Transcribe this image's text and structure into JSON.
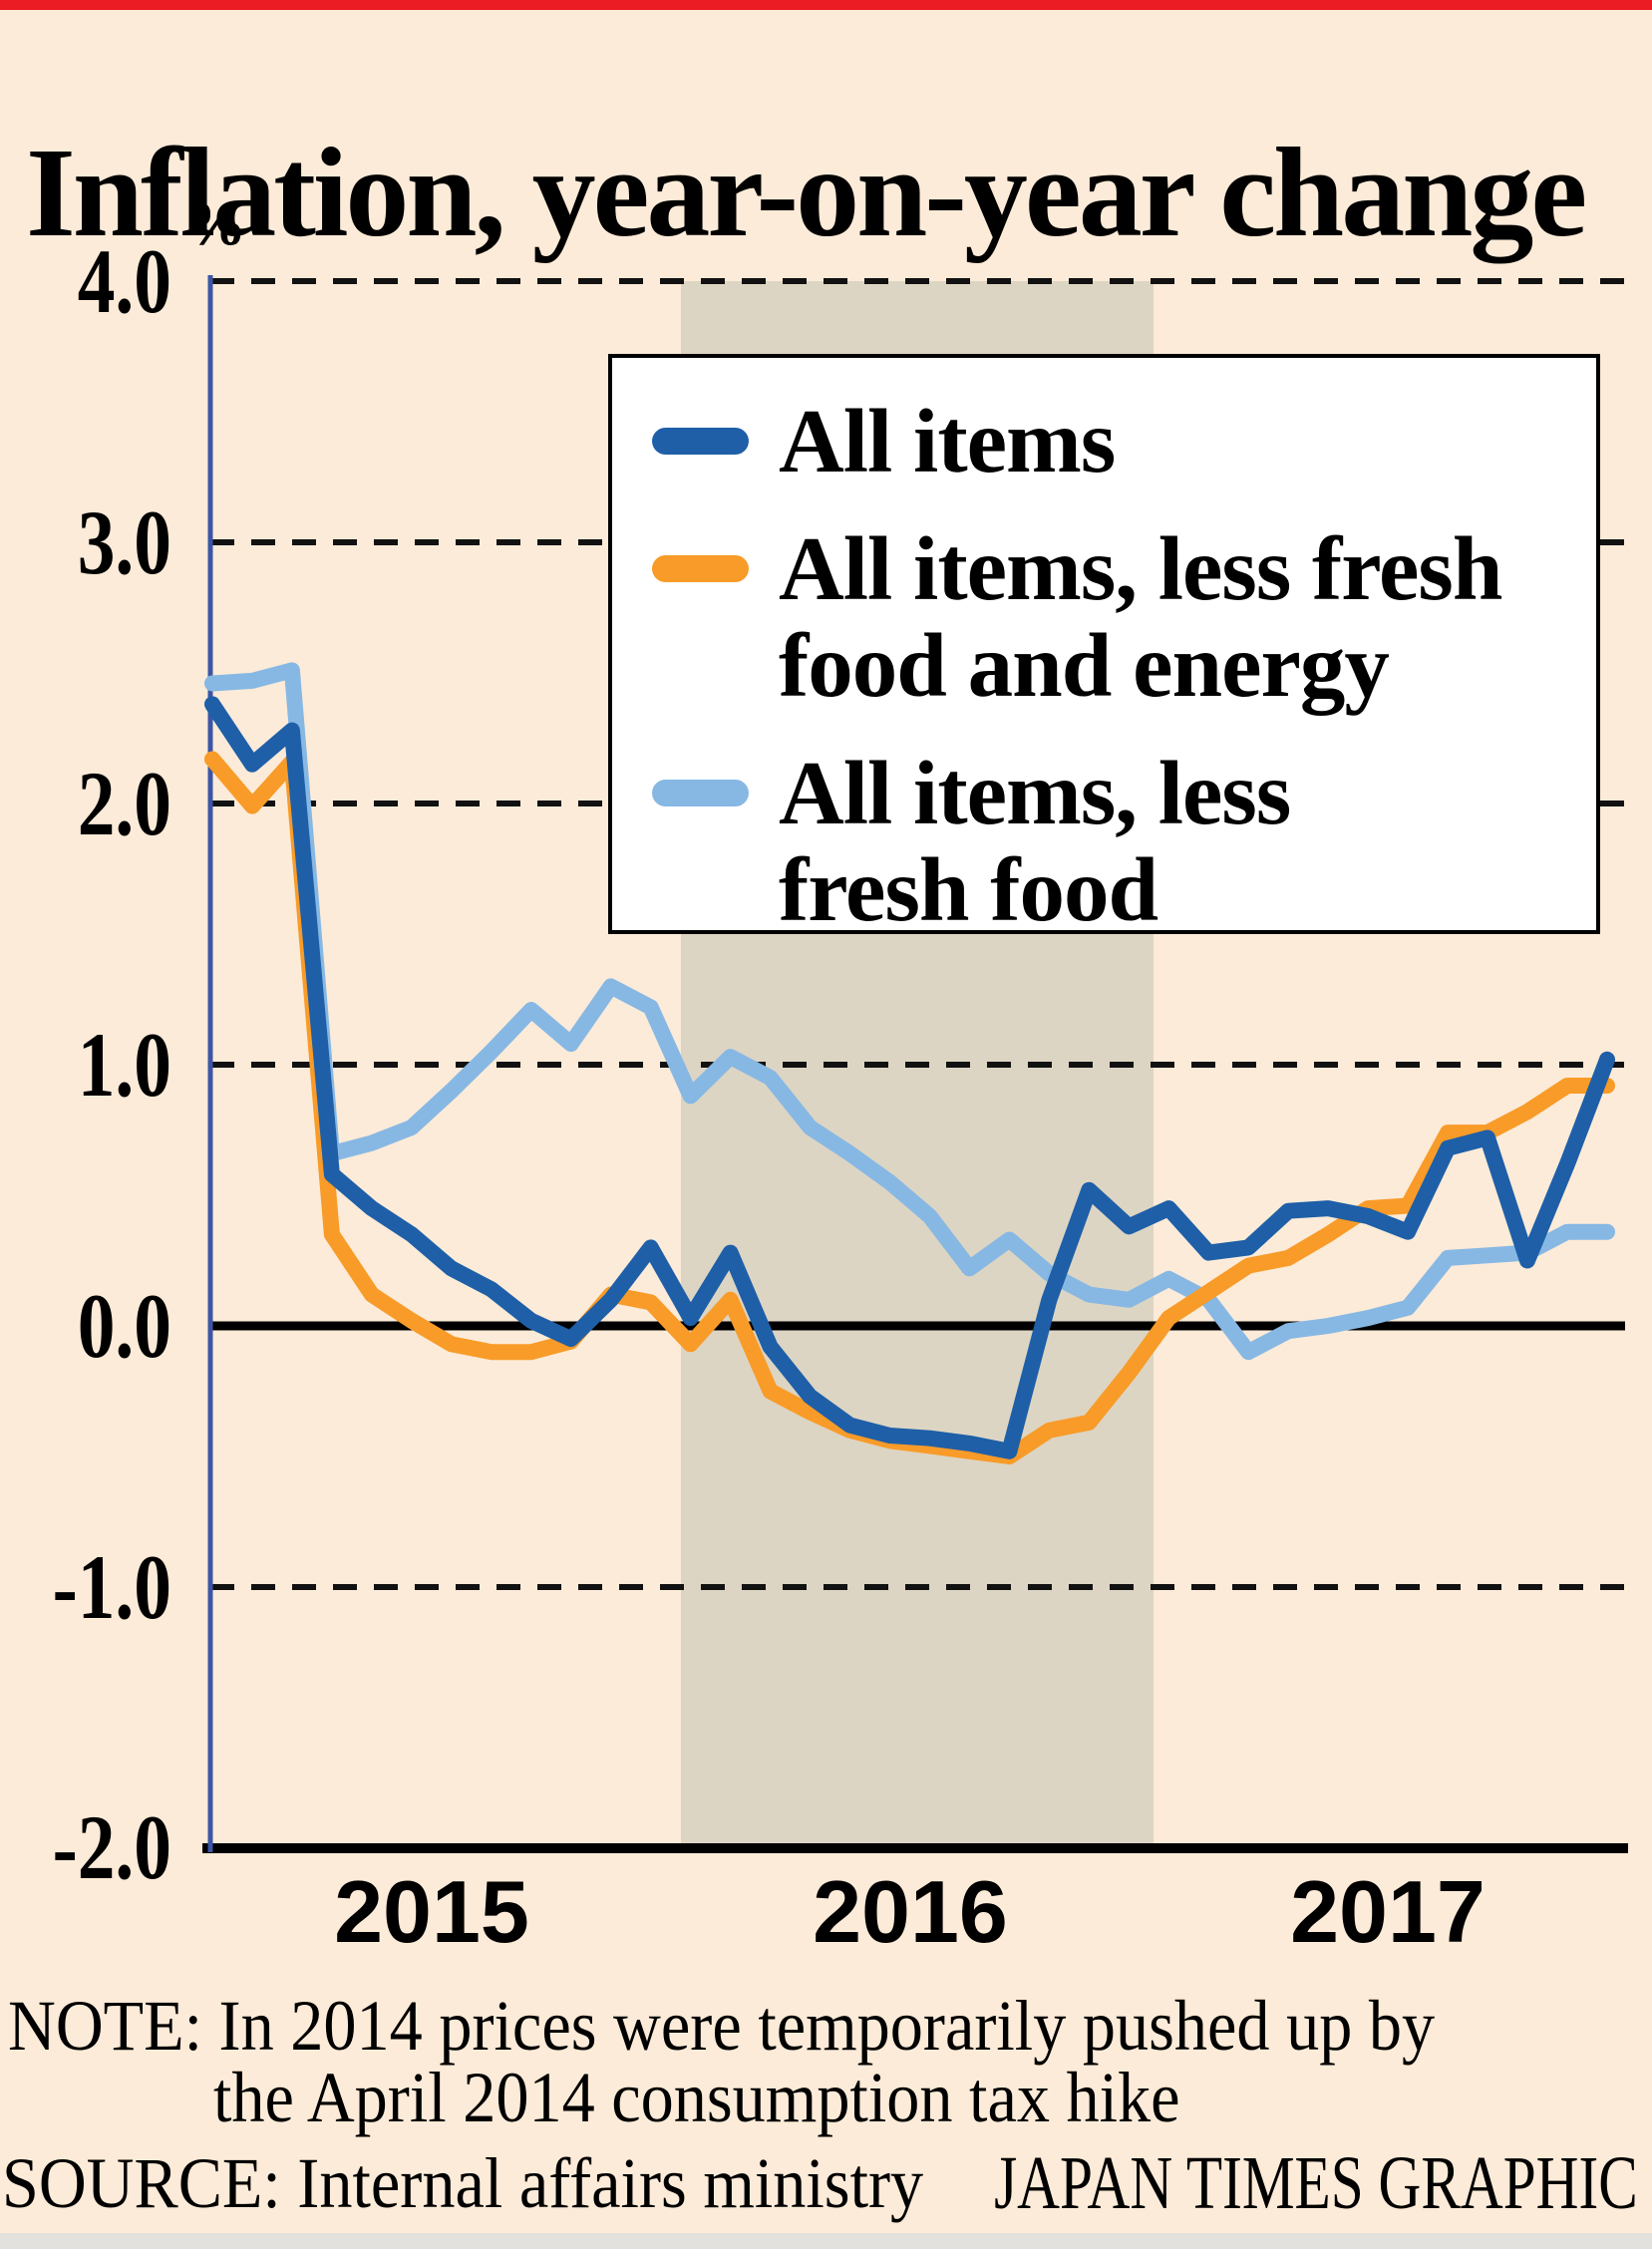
{
  "title": "Inflation, year-on-year change",
  "y_axis": {
    "unit_label": "%",
    "labels": [
      {
        "text": "4.0",
        "value": 4.0
      },
      {
        "text": "3.0",
        "value": 3.0
      },
      {
        "text": "2.0",
        "value": 2.0
      },
      {
        "text": "1.0",
        "value": 1.0
      },
      {
        "text": "0.0",
        "value": 0.0
      },
      {
        "text": "-1.0",
        "value": -1.0
      },
      {
        "text": "-2.0",
        "value": -2.0
      }
    ]
  },
  "x_axis": {
    "labels": [
      {
        "text": "2015"
      },
      {
        "text": "2016"
      },
      {
        "text": "2017"
      }
    ]
  },
  "legend": {
    "items": [
      {
        "label": "All items",
        "color": "#1E5FA8"
      },
      {
        "label": "All items, less fresh\nfood and energy",
        "color": "#F89B28"
      },
      {
        "label": "All items, less\nfresh food",
        "color": "#87B8E4"
      }
    ]
  },
  "note_line_1": "NOTE: In 2014 prices were temporarily pushed up by",
  "note_line_2": "the April 2014 consumption tax hike",
  "source": "SOURCE: Internal affairs ministry",
  "credit": "JAPAN TIMES GRAPHIC",
  "colors": {
    "background": "#FCEBD8",
    "top_strip_red": "#EC1C24",
    "bottom_strip": "#E3E1DD",
    "highlight_band": "#DDD5C3",
    "axis_line": "#3C55A5",
    "gridline": "#111111",
    "zero_line": "#000000",
    "baseline": "#000000",
    "all_items": "#1E5FA8",
    "less_fresh_food_and_energy": "#F89B28",
    "less_fresh_food": "#87B8E4"
  },
  "chart_data": {
    "type": "line",
    "title": "Inflation, year-on-year change",
    "ylabel": "%",
    "ylim": [
      -2.0,
      4.0
    ],
    "gridlines_dashed_at": [
      4.0,
      3.0,
      2.0,
      1.0,
      -1.0
    ],
    "zero_line": true,
    "frequency": "monthly",
    "x_start": "2015-01",
    "x_end": "2017-12",
    "highlight_band_x": [
      "2016-01",
      "2017-01"
    ],
    "legend_position": "upper right",
    "series": [
      {
        "name": "All items",
        "color": "#1E5FA8",
        "values": [
          2.38,
          2.15,
          2.28,
          0.58,
          0.45,
          0.35,
          0.22,
          0.14,
          0.02,
          -0.05,
          0.1,
          0.3,
          0.03,
          0.28,
          -0.08,
          -0.27,
          -0.38,
          -0.42,
          -0.43,
          -0.45,
          -0.48,
          0.1,
          0.52,
          0.38,
          0.45,
          0.28,
          0.3,
          0.44,
          0.45,
          0.42,
          0.36,
          0.68,
          0.72,
          0.25,
          0.62,
          1.02
        ]
      },
      {
        "name": "All items, less fresh food and energy",
        "color": "#F89B28",
        "values": [
          2.17,
          1.99,
          2.16,
          0.35,
          0.12,
          0.02,
          -0.07,
          -0.1,
          -0.1,
          -0.06,
          0.12,
          0.09,
          -0.07,
          0.1,
          -0.25,
          -0.33,
          -0.4,
          -0.44,
          -0.46,
          -0.48,
          -0.5,
          -0.4,
          -0.37,
          -0.18,
          0.03,
          0.13,
          0.23,
          0.26,
          0.35,
          0.45,
          0.46,
          0.74,
          0.74,
          0.82,
          0.92,
          0.92
        ]
      },
      {
        "name": "All items, less fresh food",
        "color": "#87B8E4",
        "values": [
          2.46,
          2.47,
          2.51,
          0.66,
          0.7,
          0.76,
          0.9,
          1.05,
          1.21,
          1.08,
          1.3,
          1.22,
          0.88,
          1.03,
          0.95,
          0.76,
          0.66,
          0.55,
          0.42,
          0.22,
          0.33,
          0.2,
          0.12,
          0.1,
          0.18,
          0.1,
          -0.1,
          -0.02,
          0.0,
          0.03,
          0.07,
          0.26,
          0.27,
          0.28,
          0.36,
          0.36
        ]
      }
    ]
  }
}
